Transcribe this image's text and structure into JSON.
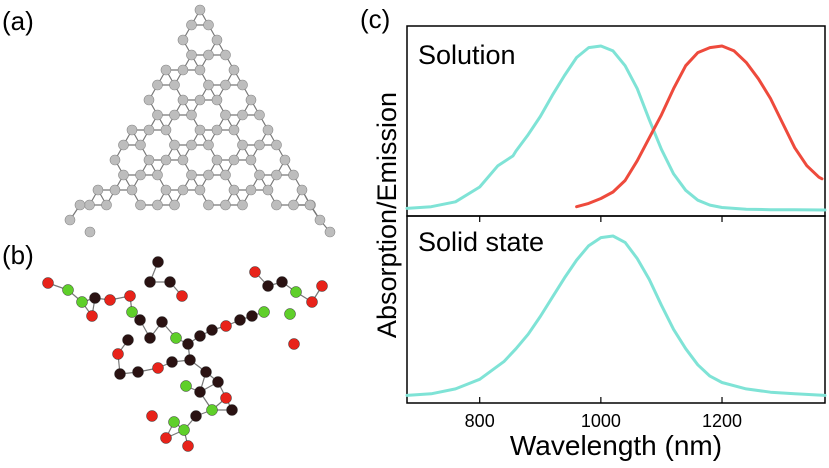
{
  "panels": {
    "a": "(a)",
    "b": "(b)",
    "c": "(c)"
  },
  "colors": {
    "absorption": "#7fe3d6",
    "emission": "#ee4a3c",
    "atom_carbon": "#bdbdbd",
    "atom_dark": "#2a1212",
    "atom_red": "#e8231a",
    "atom_green": "#5fcf2a",
    "bond": "#777777"
  },
  "chart_data": [
    {
      "type": "line",
      "panel_title": "Solution",
      "ylabel": "Absorption/Emission",
      "xlim": [
        680,
        1370
      ],
      "ylim": [
        0,
        1
      ],
      "series": [
        {
          "color": "#7fe3d6",
          "x": [
            680,
            720,
            760,
            800,
            830,
            855,
            860,
            880,
            900,
            920,
            940,
            960,
            980,
            1000,
            1020,
            1040,
            1060,
            1080,
            1100,
            1120,
            1140,
            1160,
            1180,
            1200,
            1240,
            1280,
            1320,
            1370
          ],
          "y": [
            0.01,
            0.02,
            0.05,
            0.14,
            0.27,
            0.33,
            0.36,
            0.46,
            0.57,
            0.7,
            0.82,
            0.93,
            0.99,
            1.0,
            0.97,
            0.88,
            0.74,
            0.55,
            0.37,
            0.22,
            0.12,
            0.06,
            0.03,
            0.015,
            0.005,
            0.002,
            0.001,
            0.0
          ]
        },
        {
          "color": "#ee4a3c",
          "x": [
            960,
            980,
            1000,
            1020,
            1040,
            1060,
            1080,
            1100,
            1120,
            1140,
            1160,
            1180,
            1200,
            1220,
            1240,
            1260,
            1280,
            1300,
            1320,
            1340,
            1360,
            1365
          ],
          "y": [
            0.02,
            0.04,
            0.07,
            0.11,
            0.18,
            0.3,
            0.44,
            0.58,
            0.74,
            0.88,
            0.96,
            0.99,
            1.0,
            0.97,
            0.9,
            0.8,
            0.68,
            0.53,
            0.38,
            0.27,
            0.2,
            0.19
          ]
        }
      ]
    },
    {
      "type": "line",
      "panel_title": "Solid state",
      "xlabel": "Wavelength (nm)",
      "xlim": [
        680,
        1370
      ],
      "ylim": [
        0,
        1
      ],
      "xticks": [
        800,
        1000,
        1200
      ],
      "series": [
        {
          "color": "#7fe3d6",
          "x": [
            680,
            720,
            760,
            800,
            840,
            860,
            880,
            900,
            920,
            940,
            960,
            980,
            1000,
            1020,
            1040,
            1060,
            1080,
            1100,
            1120,
            1140,
            1160,
            1180,
            1200,
            1240,
            1280,
            1320,
            1370
          ],
          "y": [
            0.01,
            0.02,
            0.05,
            0.11,
            0.22,
            0.3,
            0.39,
            0.5,
            0.62,
            0.74,
            0.85,
            0.94,
            0.99,
            1.0,
            0.96,
            0.86,
            0.73,
            0.57,
            0.42,
            0.3,
            0.2,
            0.13,
            0.09,
            0.05,
            0.03,
            0.02,
            0.01
          ]
        }
      ]
    }
  ]
}
